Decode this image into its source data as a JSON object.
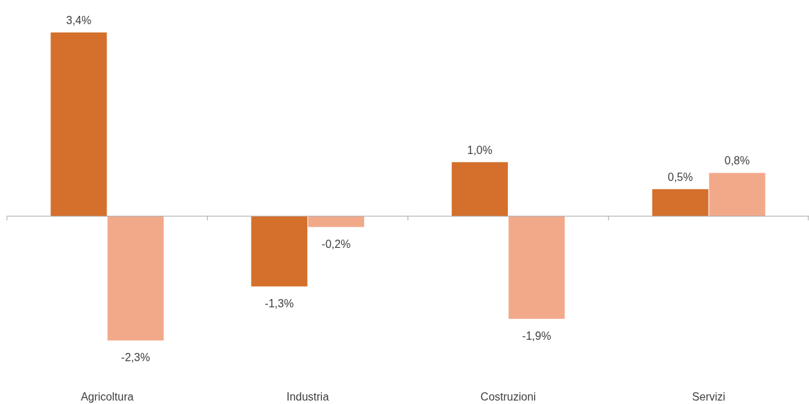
{
  "chart_data": {
    "type": "bar",
    "categories": [
      "Agricoltura",
      "Industria",
      "Costruzioni",
      "Servizi"
    ],
    "series": [
      {
        "color": "#d4702b",
        "values": [
          3.4,
          -1.3,
          1.0,
          0.5
        ],
        "value_labels": [
          "3,4%",
          "-1,3%",
          "1,0%",
          "0,5%"
        ]
      },
      {
        "color": "#f2a98a",
        "values": [
          -2.3,
          -0.2,
          -1.9,
          0.8
        ],
        "value_labels": [
          "-2,3%",
          "-0,2%",
          "-1,9%",
          "0,8%"
        ]
      }
    ]
  }
}
